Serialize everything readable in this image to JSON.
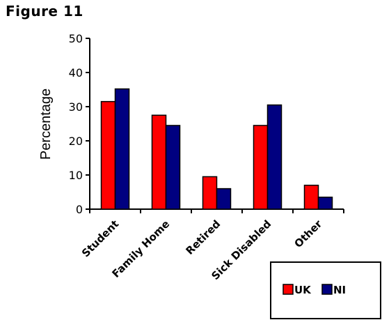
{
  "figure_title": "Figure 11",
  "chart_data": {
    "type": "bar",
    "title": "",
    "xlabel": "",
    "ylabel": "Percentage",
    "ylim": [
      0,
      50
    ],
    "yticks": [
      0,
      10,
      20,
      30,
      40,
      50
    ],
    "categories": [
      "Student",
      "Family Home",
      "Retired",
      "Sick Disabled",
      "Other"
    ],
    "series": [
      {
        "name": "UK",
        "color": "#ff0000",
        "values": [
          31.5,
          27.5,
          9.5,
          24.5,
          7
        ]
      },
      {
        "name": "NI",
        "color": "#000080",
        "values": [
          35.2,
          24.5,
          6,
          30.5,
          3.5
        ]
      }
    ],
    "legend": "bottom-right",
    "grid": false
  }
}
